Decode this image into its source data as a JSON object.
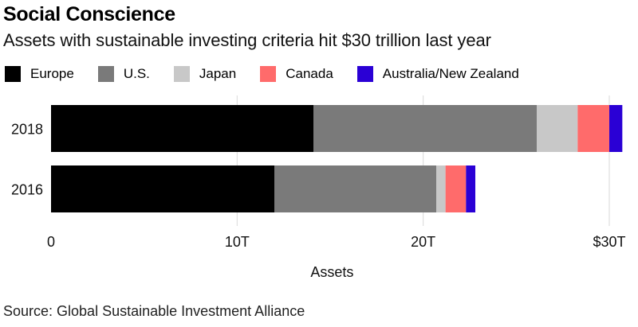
{
  "title": "Social Conscience",
  "subtitle": "Assets with sustainable investing criteria hit $30 trillion last year",
  "source": "Source: Global Sustainable Investment Alliance",
  "legend": [
    {
      "label": "Europe",
      "color": "#000000"
    },
    {
      "label": "U.S.",
      "color": "#7a7a7a"
    },
    {
      "label": "Japan",
      "color": "#c8c8c8"
    },
    {
      "label": "Canada",
      "color": "#ff6b6b"
    },
    {
      "label": "Australia/New Zealand",
      "color": "#2a00d5"
    }
  ],
  "chart_data": {
    "type": "bar",
    "orientation": "horizontal",
    "stacked": true,
    "categories": [
      "2018",
      "2016"
    ],
    "series": [
      {
        "name": "Europe",
        "color": "#000000",
        "values": [
          14.1,
          12.0
        ]
      },
      {
        "name": "U.S.",
        "color": "#7a7a7a",
        "values": [
          12.0,
          8.7
        ]
      },
      {
        "name": "Japan",
        "color": "#c8c8c8",
        "values": [
          2.2,
          0.5
        ]
      },
      {
        "name": "Canada",
        "color": "#ff6b6b",
        "values": [
          1.7,
          1.1
        ]
      },
      {
        "name": "Australia/New Zealand",
        "color": "#2a00d5",
        "values": [
          0.7,
          0.5
        ]
      }
    ],
    "xlabel": "Assets",
    "xlim": [
      0,
      30
    ],
    "xticks": [
      0,
      10,
      20,
      30
    ],
    "xtick_labels": [
      "0",
      "10T",
      "20T",
      "$30T"
    ],
    "grid": true,
    "legend_position": "top"
  }
}
